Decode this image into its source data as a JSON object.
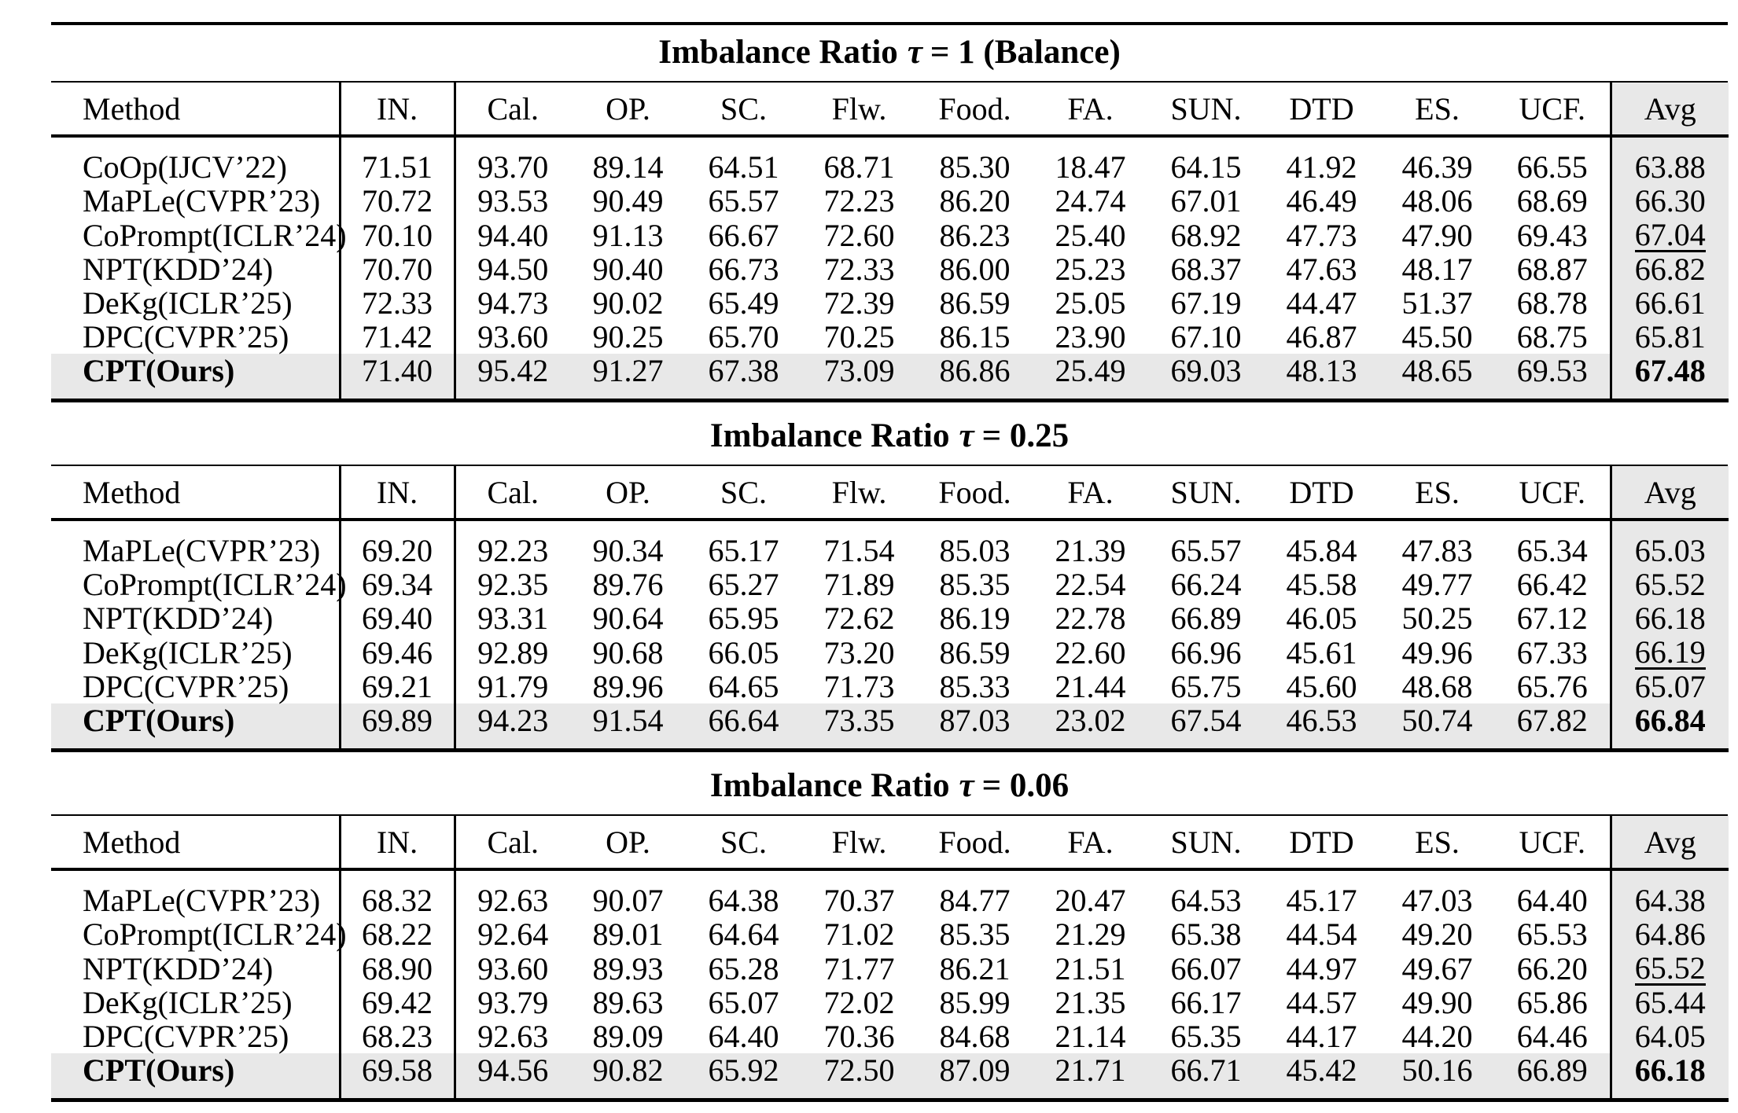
{
  "colors": {
    "highlight_bg": "#e8e8e8",
    "rule": "#000000",
    "text": "#000000"
  },
  "columns": [
    "Method",
    "IN.",
    "Cal.",
    "OP.",
    "SC.",
    "Flw.",
    "Food.",
    "FA.",
    "SUN.",
    "DTD",
    "ES.",
    "UCF.",
    "Avg"
  ],
  "tables": [
    {
      "title": {
        "prefix": "Imbalance Ratio",
        "tau": "τ",
        "rest": "= 1 (Balance)"
      },
      "rows": [
        {
          "method": "CoOp(IJCV’22)",
          "values": [
            "71.51",
            "93.70",
            "89.14",
            "64.51",
            "68.71",
            "85.30",
            "18.47",
            "64.15",
            "41.92",
            "46.39",
            "66.55"
          ],
          "avg": "63.88",
          "avg_style": "normal",
          "highlight": false
        },
        {
          "method": "MaPLe(CVPR’23)",
          "values": [
            "70.72",
            "93.53",
            "90.49",
            "65.57",
            "72.23",
            "86.20",
            "24.74",
            "67.01",
            "46.49",
            "48.06",
            "68.69"
          ],
          "avg": "66.30",
          "avg_style": "normal",
          "highlight": false
        },
        {
          "method": "CoPrompt(ICLR’24)",
          "values": [
            "70.10",
            "94.40",
            "91.13",
            "66.67",
            "72.60",
            "86.23",
            "25.40",
            "68.92",
            "47.73",
            "47.90",
            "69.43"
          ],
          "avg": "67.04",
          "avg_style": "underline",
          "highlight": false
        },
        {
          "method": "NPT(KDD’24)",
          "values": [
            "70.70",
            "94.50",
            "90.40",
            "66.73",
            "72.33",
            "86.00",
            "25.23",
            "68.37",
            "47.63",
            "48.17",
            "68.87"
          ],
          "avg": "66.82",
          "avg_style": "normal",
          "highlight": false
        },
        {
          "method": "DeKg(ICLR’25)",
          "values": [
            "72.33",
            "94.73",
            "90.02",
            "65.49",
            "72.39",
            "86.59",
            "25.05",
            "67.19",
            "44.47",
            "51.37",
            "68.78"
          ],
          "avg": "66.61",
          "avg_style": "normal",
          "highlight": false
        },
        {
          "method": "DPC(CVPR’25)",
          "values": [
            "71.42",
            "93.60",
            "90.25",
            "65.70",
            "70.25",
            "86.15",
            "23.90",
            "67.10",
            "46.87",
            "45.50",
            "68.75"
          ],
          "avg": "65.81",
          "avg_style": "normal",
          "highlight": false
        },
        {
          "method": "CPT(Ours)",
          "values": [
            "71.40",
            "95.42",
            "91.27",
            "67.38",
            "73.09",
            "86.86",
            "25.49",
            "69.03",
            "48.13",
            "48.65",
            "69.53"
          ],
          "avg": "67.48",
          "avg_style": "bold",
          "highlight": true
        }
      ]
    },
    {
      "title": {
        "prefix": "Imbalance Ratio",
        "tau": "τ",
        "rest": "= 0.25"
      },
      "rows": [
        {
          "method": "MaPLe(CVPR’23)",
          "values": [
            "69.20",
            "92.23",
            "90.34",
            "65.17",
            "71.54",
            "85.03",
            "21.39",
            "65.57",
            "45.84",
            "47.83",
            "65.34"
          ],
          "avg": "65.03",
          "avg_style": "normal",
          "highlight": false
        },
        {
          "method": "CoPrompt(ICLR’24)",
          "values": [
            "69.34",
            "92.35",
            "89.76",
            "65.27",
            "71.89",
            "85.35",
            "22.54",
            "66.24",
            "45.58",
            "49.77",
            "66.42"
          ],
          "avg": "65.52",
          "avg_style": "normal",
          "highlight": false
        },
        {
          "method": "NPT(KDD’24)",
          "values": [
            "69.40",
            "93.31",
            "90.64",
            "65.95",
            "72.62",
            "86.19",
            "22.78",
            "66.89",
            "46.05",
            "50.25",
            "67.12"
          ],
          "avg": "66.18",
          "avg_style": "normal",
          "highlight": false
        },
        {
          "method": "DeKg(ICLR’25)",
          "values": [
            "69.46",
            "92.89",
            "90.68",
            "66.05",
            "73.20",
            "86.59",
            "22.60",
            "66.96",
            "45.61",
            "49.96",
            "67.33"
          ],
          "avg": "66.19",
          "avg_style": "underline",
          "highlight": false
        },
        {
          "method": "DPC(CVPR’25)",
          "values": [
            "69.21",
            "91.79",
            "89.96",
            "64.65",
            "71.73",
            "85.33",
            "21.44",
            "65.75",
            "45.60",
            "48.68",
            "65.76"
          ],
          "avg": "65.07",
          "avg_style": "normal",
          "highlight": false
        },
        {
          "method": "CPT(Ours)",
          "values": [
            "69.89",
            "94.23",
            "91.54",
            "66.64",
            "73.35",
            "87.03",
            "23.02",
            "67.54",
            "46.53",
            "50.74",
            "67.82"
          ],
          "avg": "66.84",
          "avg_style": "bold",
          "highlight": true
        }
      ]
    },
    {
      "title": {
        "prefix": "Imbalance Ratio",
        "tau": "τ",
        "rest": "= 0.06"
      },
      "rows": [
        {
          "method": "MaPLe(CVPR’23)",
          "values": [
            "68.32",
            "92.63",
            "90.07",
            "64.38",
            "70.37",
            "84.77",
            "20.47",
            "64.53",
            "45.17",
            "47.03",
            "64.40"
          ],
          "avg": "64.38",
          "avg_style": "normal",
          "highlight": false
        },
        {
          "method": "CoPrompt(ICLR’24)",
          "values": [
            "68.22",
            "92.64",
            "89.01",
            "64.64",
            "71.02",
            "85.35",
            "21.29",
            "65.38",
            "44.54",
            "49.20",
            "65.53"
          ],
          "avg": "64.86",
          "avg_style": "normal",
          "highlight": false
        },
        {
          "method": "NPT(KDD’24)",
          "values": [
            "68.90",
            "93.60",
            "89.93",
            "65.28",
            "71.77",
            "86.21",
            "21.51",
            "66.07",
            "44.97",
            "49.67",
            "66.20"
          ],
          "avg": "65.52",
          "avg_style": "underline",
          "highlight": false
        },
        {
          "method": "DeKg(ICLR’25)",
          "values": [
            "69.42",
            "93.79",
            "89.63",
            "65.07",
            "72.02",
            "85.99",
            "21.35",
            "66.17",
            "44.57",
            "49.90",
            "65.86"
          ],
          "avg": "65.44",
          "avg_style": "normal",
          "highlight": false
        },
        {
          "method": "DPC(CVPR’25)",
          "values": [
            "68.23",
            "92.63",
            "89.09",
            "64.40",
            "70.36",
            "84.68",
            "21.14",
            "65.35",
            "44.17",
            "44.20",
            "64.46"
          ],
          "avg": "64.05",
          "avg_style": "normal",
          "highlight": false
        },
        {
          "method": "CPT(Ours)",
          "values": [
            "69.58",
            "94.56",
            "90.82",
            "65.92",
            "72.50",
            "87.09",
            "21.71",
            "66.71",
            "45.42",
            "50.16",
            "66.89"
          ],
          "avg": "66.18",
          "avg_style": "bold",
          "highlight": true
        }
      ]
    }
  ]
}
